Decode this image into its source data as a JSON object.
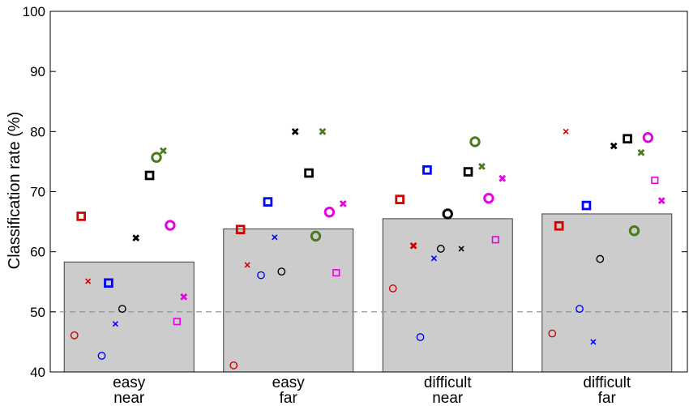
{
  "colors": {
    "bar_fill": "#cccccc",
    "bar_stroke": "#404040",
    "chance_line": "#8c8c8c",
    "axis": "#000000"
  },
  "chart_data": {
    "type": "bar",
    "title": "",
    "xlabel": "",
    "ylabel": "Classification rate (%)",
    "ylim": [
      40,
      100
    ],
    "yticks": [
      40,
      50,
      60,
      70,
      80,
      90,
      100
    ],
    "grid": false,
    "legend": "none",
    "chance_level": 50,
    "categories": [
      [
        "easy",
        "near"
      ],
      [
        "easy",
        "far"
      ],
      [
        "difficult",
        "near"
      ],
      [
        "difficult",
        "far"
      ]
    ],
    "bar_values": [
      58.3,
      63.8,
      65.5,
      66.3
    ],
    "subjects": [
      {
        "color": "#d40000",
        "marker": "circle",
        "size": "small",
        "values": [
          46.1,
          41.1,
          53.9,
          46.4
        ]
      },
      {
        "color": "#d40000",
        "marker": "square",
        "size": "large",
        "values": [
          65.9,
          63.7,
          68.7,
          64.3
        ]
      },
      {
        "color": "#d40000",
        "marker": "x",
        "size": "small",
        "values": [
          55.1,
          57.8,
          null,
          80.0
        ]
      },
      {
        "color": "#d40000",
        "marker": "x",
        "size": "large",
        "values": [
          null,
          null,
          61.0,
          null
        ]
      },
      {
        "color": "#0000ff",
        "marker": "circle",
        "size": "small",
        "values": [
          42.7,
          56.1,
          45.8,
          50.5
        ]
      },
      {
        "color": "#0000ff",
        "marker": "square",
        "size": "large",
        "values": [
          54.8,
          68.3,
          73.6,
          67.7
        ]
      },
      {
        "color": "#0000ff",
        "marker": "x",
        "size": "small",
        "values": [
          48.0,
          62.4,
          58.9,
          45.0
        ]
      },
      {
        "color": "#000000",
        "marker": "circle",
        "size": "small",
        "values": [
          50.5,
          56.7,
          60.5,
          58.8
        ]
      },
      {
        "color": "#000000",
        "marker": "circle",
        "size": "large",
        "values": [
          null,
          null,
          66.3,
          null
        ]
      },
      {
        "color": "#000000",
        "marker": "x",
        "size": "large",
        "values": [
          62.3,
          80.0,
          null,
          77.6
        ]
      },
      {
        "color": "#000000",
        "marker": "x",
        "size": "small",
        "values": [
          null,
          null,
          60.5,
          null
        ]
      },
      {
        "color": "#000000",
        "marker": "square",
        "size": "large",
        "values": [
          72.7,
          73.1,
          73.3,
          78.8
        ]
      },
      {
        "color": "#4a7a1e",
        "marker": "circle",
        "size": "large",
        "values": [
          75.7,
          62.6,
          78.3,
          63.5
        ]
      },
      {
        "color": "#4a7a1e",
        "marker": "x",
        "size": "large",
        "values": [
          76.8,
          80.0,
          74.2,
          76.5
        ]
      },
      {
        "color": "#e600e6",
        "marker": "circle",
        "size": "large",
        "values": [
          64.4,
          66.6,
          68.9,
          79.0
        ]
      },
      {
        "color": "#e600e6",
        "marker": "square",
        "size": "small",
        "values": [
          48.4,
          56.5,
          62.0,
          71.9
        ]
      },
      {
        "color": "#e600e6",
        "marker": "x",
        "size": "large",
        "values": [
          52.5,
          68.0,
          72.2,
          68.5
        ]
      }
    ]
  }
}
